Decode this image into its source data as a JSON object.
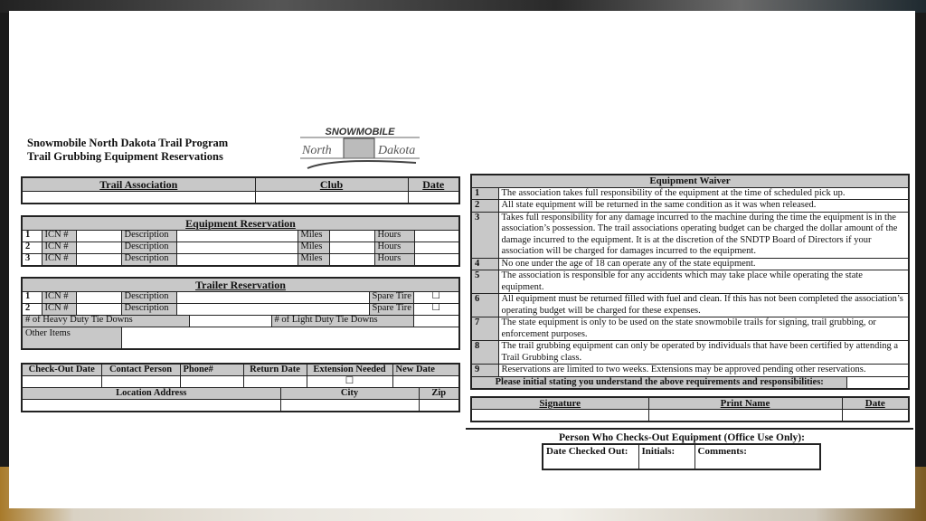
{
  "header": {
    "line1": "Snowmobile North Dakota Trail Program",
    "line2": "Trail Grubbing Equipment Reservations",
    "logo_text": "SNOWMOBILE North Dakota"
  },
  "association": {
    "headers": [
      "Trail Association",
      "Club",
      "Date"
    ]
  },
  "equipment": {
    "title": "Equipment Reservation",
    "rows": [
      {
        "n": "1",
        "icn": "ICN #",
        "desc": "Description",
        "miles": "Miles",
        "hours": "Hours"
      },
      {
        "n": "2",
        "icn": "ICN #",
        "desc": "Description",
        "miles": "Miles",
        "hours": "Hours"
      },
      {
        "n": "3",
        "icn": "ICN #",
        "desc": "Description",
        "miles": "Miles",
        "hours": "Hours"
      }
    ]
  },
  "trailer": {
    "title": "Trailer Reservation",
    "rows": [
      {
        "n": "1",
        "icn": "ICN #",
        "desc": "Description",
        "spare": "Spare Tire",
        "box": "☐"
      },
      {
        "n": "2",
        "icn": "ICN #",
        "desc": "Description",
        "spare": "Spare Tire",
        "box": "☐"
      }
    ],
    "heavy": "# of Heavy Duty Tie Downs",
    "light": "# of Light Duty Tie Downs",
    "other": "Other Items"
  },
  "checkout": {
    "headers": [
      "Check-Out Date",
      "Contact Person",
      "Phone#",
      "Return Date",
      "Extension Needed",
      "New Date"
    ],
    "ext_box": "☐",
    "loc_headers": [
      "Location Address",
      "City",
      "Zip"
    ]
  },
  "waiver": {
    "title": "Equipment Waiver",
    "items": [
      {
        "n": "1",
        "text": "The association takes full responsibility of the equipment at the time of scheduled pick up."
      },
      {
        "n": "2",
        "text": "All state equipment will be returned in the same condition as it was when released."
      },
      {
        "n": "3",
        "text": "Takes full responsibility for any damage incurred to the machine during the time the equipment is in the association’s possession.  The trail associations operating budget can be charged the dollar amount of the damage incurred to the equipment.  It is at the discretion of the SNDTP Board of Directors if your association will be charged for damages incurred to the equipment."
      },
      {
        "n": "4",
        "text": "No one under the age of 18 can operate any of the state equipment."
      },
      {
        "n": "5",
        "text": "The association is responsible for any accidents which may take place while operating the state equipment."
      },
      {
        "n": "6",
        "text": "All equipment must be returned filled with fuel and clean.  If this has not been completed the association’s operating budget will be charged for these expenses."
      },
      {
        "n": "7",
        "text": "The state equipment is only to be used on the state snowmobile trails for signing, trail grubbing, or enforcement purposes."
      },
      {
        "n": "8",
        "text": "The trail grubbing equipment can only be operated by individuals that have been certified by attending a Trail Grubbing class."
      },
      {
        "n": "9",
        "text": "Reservations are limited to two weeks.  Extensions may be approved pending other reservations."
      }
    ],
    "initial": "Please initial stating you understand the above requirements and responsibilities:"
  },
  "signature": {
    "headers": [
      "Signature",
      "Print Name",
      "Date"
    ]
  },
  "office": {
    "title": "Person Who Checks-Out Equipment (Office Use Only):",
    "headers": [
      "Date Checked Out:",
      "Initials:",
      "Comments:"
    ]
  }
}
